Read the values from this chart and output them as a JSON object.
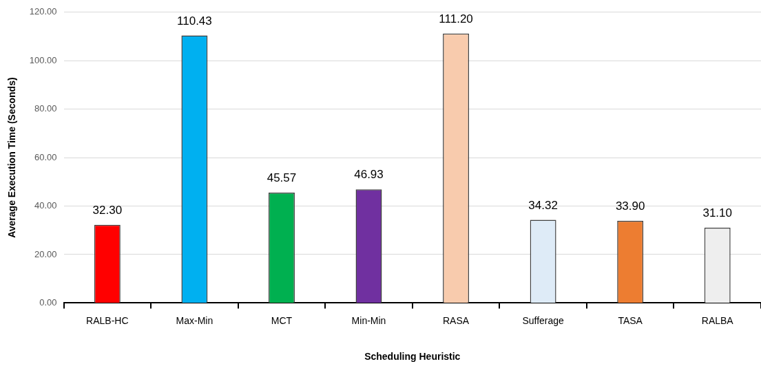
{
  "chart_data": {
    "type": "bar",
    "xlabel": "Scheduling Heuristic",
    "ylabel": "Average Execution Time (Seconds)",
    "categories": [
      "RALB-HC",
      "Max-Min",
      "MCT",
      "Min-Min",
      "RASA",
      "Sufferage",
      "TASA",
      "RALBA"
    ],
    "values": [
      32.3,
      110.43,
      45.57,
      46.93,
      111.2,
      34.32,
      33.9,
      31.1
    ],
    "value_labels": [
      "32.30",
      "110.43",
      "45.57",
      "46.93",
      "111.20",
      "34.32",
      "33.90",
      "31.10"
    ],
    "colors": [
      "#ff0000",
      "#00b0f0",
      "#00b050",
      "#7030a0",
      "#f8cbad",
      "#deebf7",
      "#ed7d31",
      "#eeeeee"
    ],
    "ylim": [
      0,
      120
    ],
    "yticks": [
      {
        "value": 0,
        "label": "0.00"
      },
      {
        "value": 20,
        "label": "20.00"
      },
      {
        "value": 40,
        "label": "40.00"
      },
      {
        "value": 60,
        "label": "60.00"
      },
      {
        "value": 80,
        "label": "80.00"
      },
      {
        "value": 100,
        "label": "100.00"
      },
      {
        "value": 120,
        "label": "120.00"
      }
    ],
    "grid": "y"
  }
}
